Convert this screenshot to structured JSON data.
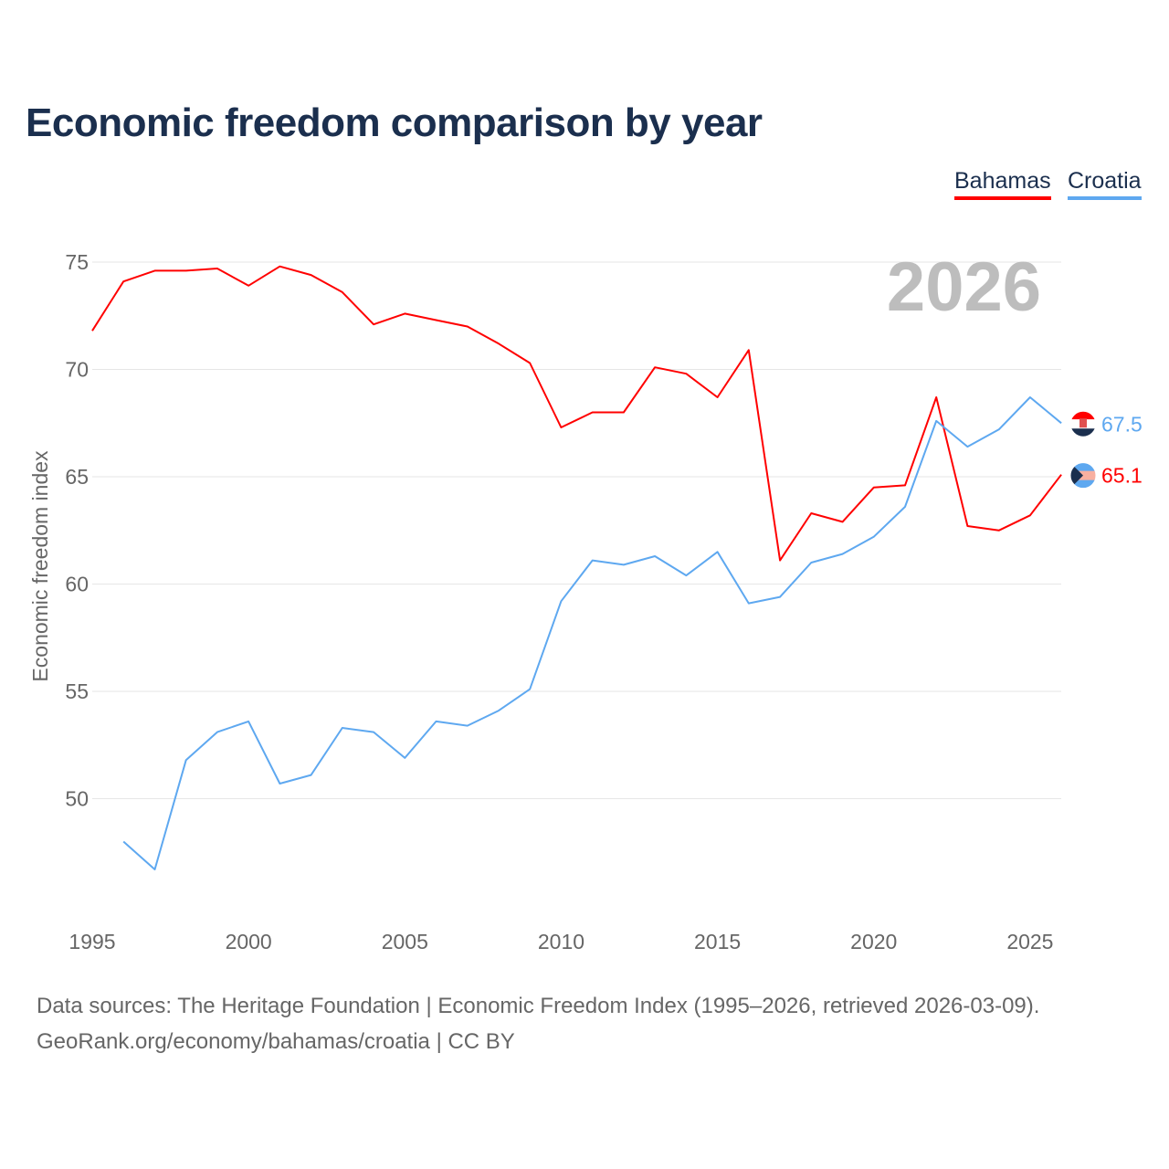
{
  "title": "Economic freedom comparison by year",
  "legend": [
    "Bahamas",
    "Croatia"
  ],
  "year_label": "2026",
  "source_line1": "Data sources: The Heritage Foundation | Economic Freedom Index (1995–2026, retrieved 2026-03-09).",
  "source_line2": "GeoRank.org/economy/bahamas/croatia | CC BY",
  "chart_data": {
    "type": "line",
    "title": "Economic freedom comparison by year",
    "xlabel": "",
    "ylabel": "Economic freedom index",
    "xlim": [
      1995,
      2026
    ],
    "ylim": [
      45,
      77
    ],
    "x_ticks": [
      1995,
      2000,
      2005,
      2010,
      2015,
      2020,
      2025
    ],
    "y_ticks": [
      50,
      55,
      60,
      65,
      70,
      75
    ],
    "grid": true,
    "legend_position": "top-right",
    "series": [
      {
        "name": "Bahamas",
        "color": "#ff0000",
        "end_label": "65.1",
        "x": [
          1995,
          1996,
          1997,
          1998,
          1999,
          2000,
          2001,
          2002,
          2003,
          2004,
          2005,
          2006,
          2007,
          2008,
          2009,
          2010,
          2011,
          2012,
          2013,
          2014,
          2015,
          2016,
          2017,
          2018,
          2019,
          2020,
          2021,
          2022,
          2023,
          2024,
          2025,
          2026
        ],
        "values": [
          71.8,
          74.1,
          74.6,
          74.6,
          74.7,
          73.9,
          74.8,
          74.4,
          73.6,
          72.1,
          72.6,
          72.3,
          72.0,
          71.2,
          70.3,
          67.3,
          68.0,
          68.0,
          70.1,
          69.8,
          68.7,
          70.9,
          61.1,
          63.3,
          62.9,
          64.5,
          64.6,
          68.7,
          62.7,
          62.5,
          63.2,
          65.1
        ]
      },
      {
        "name": "Croatia",
        "color": "#5ea8f0",
        "end_label": "67.5",
        "x": [
          1996,
          1997,
          1998,
          1999,
          2000,
          2001,
          2002,
          2003,
          2004,
          2005,
          2006,
          2007,
          2008,
          2009,
          2010,
          2011,
          2012,
          2013,
          2014,
          2015,
          2016,
          2017,
          2018,
          2019,
          2020,
          2021,
          2022,
          2023,
          2024,
          2025,
          2026
        ],
        "values": [
          48.0,
          46.7,
          51.8,
          53.1,
          53.6,
          50.7,
          51.1,
          53.3,
          53.1,
          51.9,
          53.6,
          53.4,
          54.1,
          55.1,
          59.2,
          61.1,
          60.9,
          61.3,
          60.4,
          61.5,
          59.1,
          59.4,
          61.0,
          61.4,
          62.2,
          63.6,
          67.6,
          66.4,
          67.2,
          68.7,
          67.5
        ]
      }
    ]
  }
}
